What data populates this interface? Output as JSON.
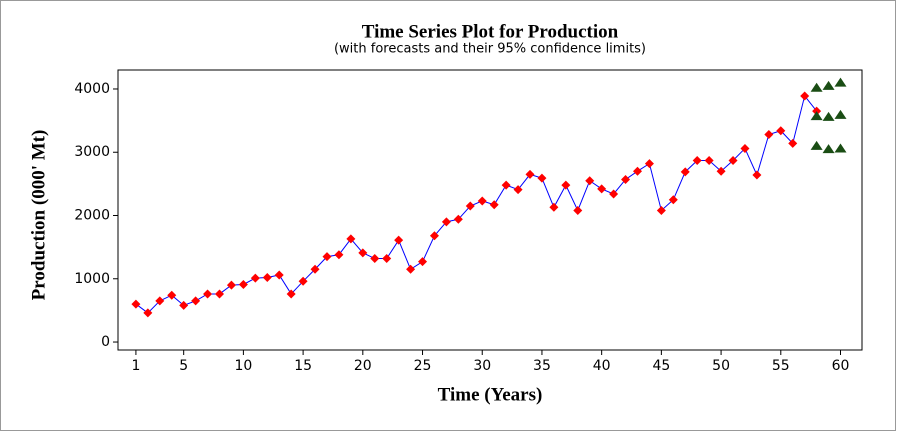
{
  "chart_data": {
    "type": "line",
    "title": "Time Series Plot for Production",
    "subtitle": "(with forecasts and their 95% confidence limits)",
    "x_label": "Time (Years)",
    "y_label": "Production (000' Mt)",
    "x": [
      1,
      2,
      3,
      4,
      5,
      6,
      7,
      8,
      9,
      10,
      11,
      12,
      13,
      14,
      15,
      16,
      17,
      18,
      19,
      20,
      21,
      22,
      23,
      24,
      25,
      26,
      27,
      28,
      29,
      30,
      31,
      32,
      33,
      34,
      35,
      36,
      37,
      38,
      39,
      40,
      41,
      42,
      43,
      44,
      45,
      46,
      47,
      48,
      49,
      50,
      51,
      52,
      53,
      54,
      55,
      56,
      57,
      58
    ],
    "values": [
      600,
      460,
      650,
      740,
      580,
      650,
      760,
      760,
      900,
      910,
      1010,
      1020,
      1060,
      760,
      960,
      1150,
      1350,
      1380,
      1630,
      1410,
      1320,
      1320,
      1610,
      1150,
      1270,
      1680,
      1900,
      1940,
      2150,
      2230,
      2170,
      2480,
      2410,
      2650,
      2590,
      2130,
      2480,
      2080,
      2550,
      2420,
      2340,
      2570,
      2700,
      2820,
      2080,
      2250,
      2690,
      2870,
      2870,
      2700,
      2870,
      3060,
      2640,
      3280,
      3340,
      3140,
      3890,
      3650
    ],
    "color": "#0000ff",
    "marker_color": "#ff0000",
    "forecasts": [
      {
        "color": "#1a4d14",
        "x": [
          58,
          59,
          60
        ],
        "values": [
          4020,
          4050,
          4100
        ]
      },
      {
        "color": "#1a4d14",
        "x": [
          58,
          59,
          60
        ],
        "values": [
          3570,
          3560,
          3590
        ]
      },
      {
        "color": "#1a4d14",
        "x": [
          58,
          59,
          60
        ],
        "values": [
          3100,
          3050,
          3060
        ]
      }
    ],
    "xlim": [
      -0.5,
      61.8
    ],
    "ylim": [
      -126,
      4300
    ],
    "xticks": [
      1,
      5,
      10,
      15,
      20,
      25,
      30,
      35,
      40,
      45,
      50,
      55,
      60
    ],
    "yticks": [
      0,
      1000,
      2000,
      3000,
      4000
    ]
  }
}
